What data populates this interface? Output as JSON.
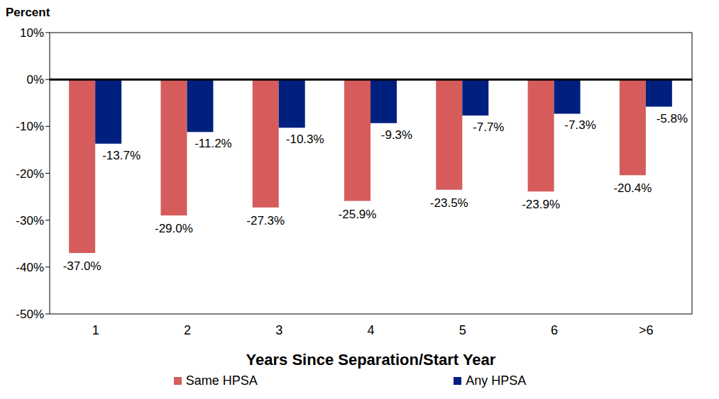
{
  "chart_data": {
    "type": "bar",
    "y_label": "Percent",
    "x_label": "Years Since Separation/Start Year",
    "categories": [
      "1",
      "2",
      "3",
      "4",
      "5",
      "6",
      ">6"
    ],
    "series": [
      {
        "name": "Same HPSA",
        "color": "#d65c5c",
        "values": [
          -37.0,
          -29.0,
          -27.3,
          -25.9,
          -23.5,
          -23.9,
          -20.4
        ],
        "value_labels": [
          "-37.0%",
          "-29.0%",
          "-27.3%",
          "-25.9%",
          "-23.5%",
          "-23.9%",
          "-20.4%"
        ]
      },
      {
        "name": "Any HPSA",
        "color": "#00207f",
        "values": [
          -13.7,
          -11.2,
          -10.3,
          -9.3,
          -7.7,
          -7.3,
          -5.8
        ],
        "value_labels": [
          "-13.7%",
          "-11.2%",
          "-10.3%",
          "-9.3%",
          "-7.7%",
          "-7.3%",
          "-5.8%"
        ]
      }
    ],
    "ylim": [
      -50,
      10
    ],
    "yticks": [
      {
        "value": -50,
        "label": "-50%"
      },
      {
        "value": -40,
        "label": "-40%"
      },
      {
        "value": -30,
        "label": "-30%"
      },
      {
        "value": -20,
        "label": "-20%"
      },
      {
        "value": -10,
        "label": "-10%"
      },
      {
        "value": 0,
        "label": "0%"
      },
      {
        "value": 10,
        "label": "10%"
      }
    ],
    "grid": false,
    "data_labels": true,
    "legend": "bottom"
  }
}
